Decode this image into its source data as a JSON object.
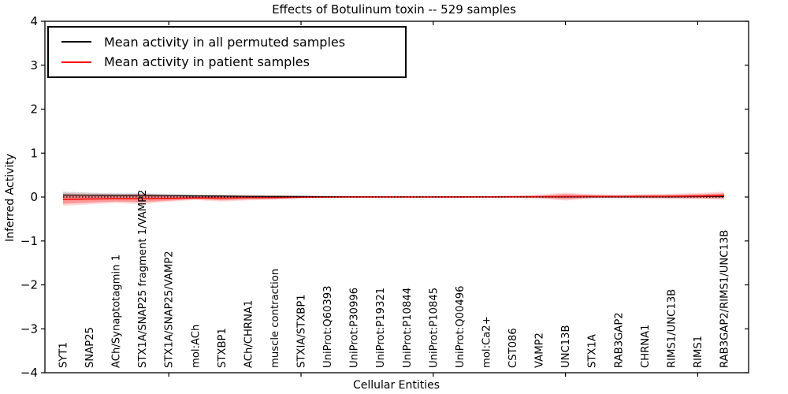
{
  "figure": {
    "title": "Effects of Botulinum toxin -- 529 samples",
    "xlabel": "Cellular Entities",
    "ylabel": "Inferred Activity"
  },
  "legend": {
    "position": "upper left",
    "entries": [
      {
        "label": "Mean activity in all permuted samples",
        "color": "#000000"
      },
      {
        "label": "Mean activity in patient samples",
        "color": "#ff0000"
      }
    ]
  },
  "chart_data": {
    "type": "line",
    "title": "Effects of Botulinum toxin -- 529 samples",
    "xlabel": "Cellular Entities",
    "ylabel": "Inferred Activity",
    "ylim": [
      -4,
      4
    ],
    "yticks": [
      -4,
      -3,
      -2,
      -1,
      0,
      1,
      2,
      3,
      4
    ],
    "grid": false,
    "legend_position": "upper left",
    "xtick_major_indices": [
      4,
      9,
      14,
      19,
      24
    ],
    "categories": [
      "SYT1",
      "SNAP25",
      "ACh/Synaptotagmin 1",
      "STX1A/SNAP25 fragment 1/VAMP2",
      "STX1A/SNAP25/VAMP2",
      "mol:ACh",
      "STXBP1",
      "ACh/CHRNA1",
      "muscle contraction",
      "STXIA/STXBP1",
      "UniProt:Q60393",
      "UniProt:P30996",
      "UniProt:P19321",
      "UniProt:P10844",
      "UniProt:P10845",
      "UniProt:Q00496",
      "mol:Ca2+",
      "CST086",
      "VAMP2",
      "UNC13B",
      "STX1A",
      "RAB3GAP2",
      "CHRNA1",
      "RIMS1/UNC13B",
      "RIMS1",
      "RAB3GAP2/RIMS1/UNC13B"
    ],
    "series": [
      {
        "name": "Mean activity in all permuted samples",
        "color": "#000000",
        "style": "solid",
        "values": [
          0.045,
          0.04,
          0.035,
          0.035,
          0.03,
          0.025,
          0.02,
          0.015,
          0.012,
          0.01,
          0.008,
          0.005,
          0.003,
          0.002,
          0.002,
          0.002,
          0.002,
          0.003,
          0.003,
          0.004,
          0.005,
          0.005,
          0.006,
          0.008,
          0.01,
          0.012
        ],
        "band_halfwidth": [
          0.075,
          0.06,
          0.05,
          0.047,
          0.042,
          0.036,
          0.03,
          0.026,
          0.022,
          0.02,
          0.016,
          0.014,
          0.013,
          0.012,
          0.012,
          0.012,
          0.012,
          0.013,
          0.014,
          0.018,
          0.02,
          0.024,
          0.028,
          0.034,
          0.04,
          0.052
        ],
        "band_color": "#aaaaaa",
        "band_opacity": 0.45
      },
      {
        "name": "Mean activity in patient samples",
        "color": "#ff0000",
        "style": "solid",
        "values": [
          -0.055,
          -0.045,
          -0.038,
          -0.042,
          -0.03,
          -0.02,
          -0.025,
          -0.015,
          -0.012,
          -0.006,
          -0.002,
          0.0,
          0.0,
          0.0,
          0.0,
          0.0,
          0.002,
          0.004,
          0.006,
          0.01,
          0.012,
          0.01,
          0.012,
          0.015,
          0.02,
          0.03
        ],
        "band_halfwidth": [
          0.1,
          0.082,
          0.068,
          0.08,
          0.052,
          0.032,
          0.05,
          0.04,
          0.032,
          0.02,
          0.013,
          0.012,
          0.012,
          0.012,
          0.012,
          0.012,
          0.015,
          0.02,
          0.03,
          0.058,
          0.032,
          0.026,
          0.032,
          0.036,
          0.042,
          0.052
        ],
        "band_outer_halfwidth": [
          0.15,
          0.122,
          0.1,
          0.12,
          0.08,
          0.05,
          0.078,
          0.062,
          0.05,
          0.032,
          0.022,
          0.02,
          0.02,
          0.02,
          0.02,
          0.02,
          0.026,
          0.032,
          0.048,
          0.09,
          0.05,
          0.042,
          0.05,
          0.06,
          0.07,
          0.09
        ],
        "band_color": "#ff0000",
        "band_opacity": 0.3,
        "band_outer_opacity": 0.15
      },
      {
        "name": "zero baseline",
        "color": "#000000",
        "style": "dotted",
        "values": [
          0,
          0,
          0,
          0,
          0,
          0,
          0,
          0,
          0,
          0,
          0,
          0,
          0,
          0,
          0,
          0,
          0,
          0,
          0,
          0,
          0,
          0,
          0,
          0,
          0,
          0
        ]
      }
    ]
  }
}
